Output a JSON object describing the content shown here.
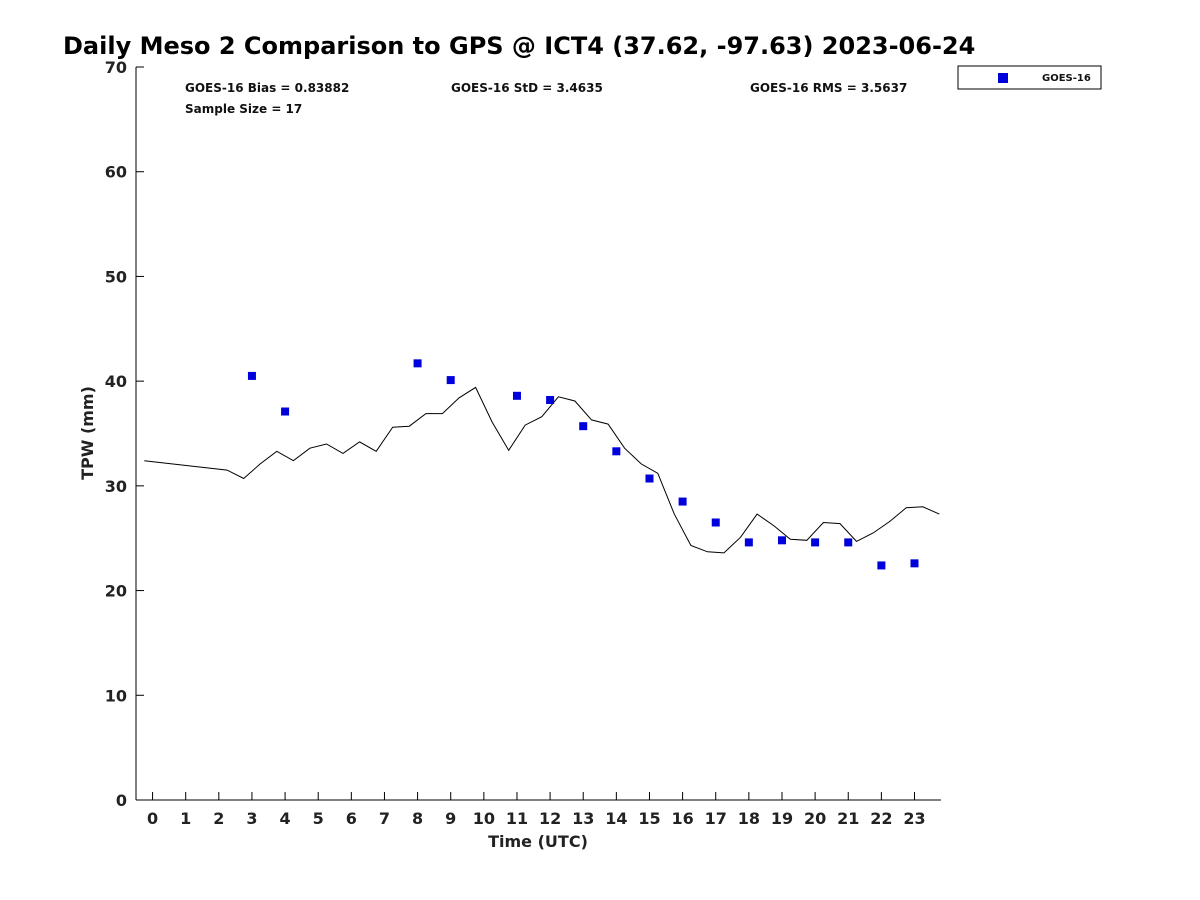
{
  "chart_data": {
    "type": "scatter",
    "title": "Daily Meso 2 Comparison to GPS @ ICT4 (37.62, -97.63) 2023-06-24",
    "xlabel": "Time (UTC)",
    "ylabel": "TPW (mm)",
    "xlim": [
      -0.5,
      23.8
    ],
    "ylim": [
      0,
      70
    ],
    "x_ticks": [
      0,
      1,
      2,
      3,
      4,
      5,
      6,
      7,
      8,
      9,
      10,
      11,
      12,
      13,
      14,
      15,
      16,
      17,
      18,
      19,
      20,
      21,
      22,
      23
    ],
    "y_ticks": [
      0,
      10,
      20,
      30,
      40,
      50,
      60,
      70
    ],
    "grid": false,
    "legend_position": "top-right",
    "stats": {
      "bias": "GOES-16 Bias = 0.83882",
      "std": "GOES-16 StD = 3.4635",
      "rms": "GOES-16 RMS = 3.5637",
      "sample": "Sample Size = 17"
    },
    "series": [
      {
        "name": "GOES-16",
        "kind": "scatter",
        "marker": "square",
        "color": "#0000dd",
        "x": [
          3,
          4,
          8,
          9,
          11,
          12,
          13,
          14,
          15,
          16,
          17,
          18,
          19,
          20,
          21,
          22,
          23
        ],
        "y": [
          40.5,
          37.1,
          41.7,
          40.1,
          38.6,
          38.2,
          35.7,
          33.3,
          30.7,
          28.5,
          26.5,
          24.6,
          24.8,
          24.6,
          24.6,
          22.4,
          22.6
        ]
      },
      {
        "kind": "line",
        "color": "#000000",
        "x": [
          -0.25,
          2.25,
          2.75,
          3.25,
          3.75,
          4.25,
          4.75,
          5.25,
          5.75,
          6.25,
          6.75,
          7.25,
          7.75,
          8.25,
          8.75,
          9.25,
          9.75,
          10.25,
          10.75,
          11.25,
          11.75,
          12.25,
          12.75,
          13.25,
          13.75,
          14.25,
          14.75,
          15.25,
          15.75,
          16.25,
          16.75,
          17.25,
          17.75,
          18.25,
          18.75,
          19.25,
          19.75,
          20.25,
          20.75,
          21.25,
          21.75,
          22.25,
          22.75,
          23.25,
          23.75
        ],
        "y": [
          32.4,
          31.5,
          30.7,
          32.1,
          33.3,
          32.4,
          33.6,
          34.0,
          33.1,
          34.2,
          33.3,
          35.6,
          35.7,
          36.9,
          36.9,
          38.4,
          39.4,
          36.1,
          33.4,
          35.8,
          36.6,
          38.5,
          38.1,
          36.3,
          35.9,
          33.6,
          32.1,
          31.2,
          27.3,
          24.3,
          23.7,
          23.6,
          25.1,
          27.3,
          26.2,
          24.9,
          24.8,
          26.5,
          26.4,
          24.7,
          25.5,
          26.6,
          27.9,
          28.0,
          27.3
        ]
      }
    ]
  }
}
